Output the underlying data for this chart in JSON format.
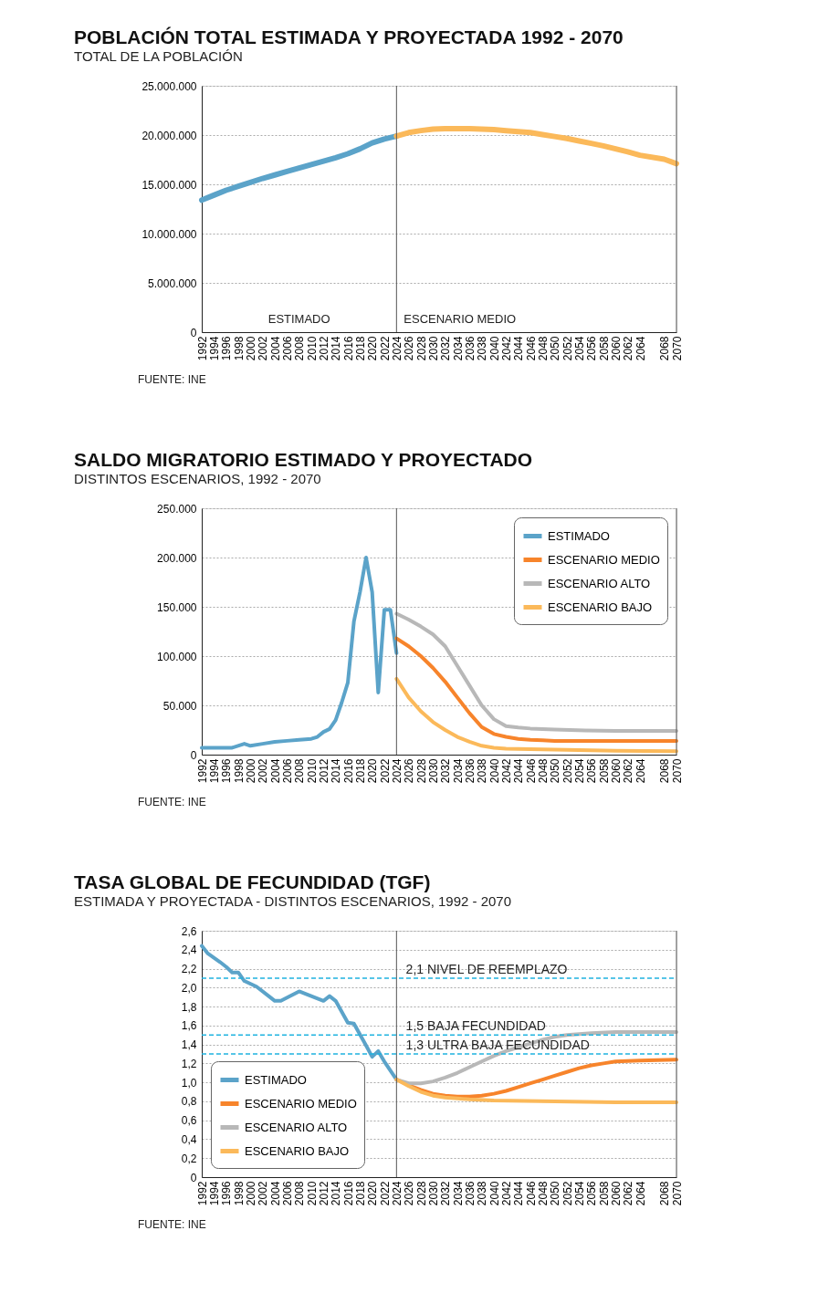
{
  "chart_data": [
    {
      "type": "line",
      "title": "POBLACIÓN TOTAL ESTIMADA Y PROYECTADA 1992 - 2070",
      "subtitle": "TOTAL DE LA POBLACIÓN",
      "xlim": [
        1992,
        2070
      ],
      "xticks": [
        1992,
        1994,
        1996,
        1998,
        2000,
        2002,
        2004,
        2006,
        2008,
        2010,
        2012,
        2014,
        2016,
        2018,
        2020,
        2022,
        2024,
        2026,
        2028,
        2030,
        2032,
        2034,
        2036,
        2038,
        2040,
        2042,
        2044,
        2046,
        2048,
        2050,
        2052,
        2054,
        2056,
        2058,
        2060,
        2062,
        2064,
        2068,
        2070
      ],
      "ylim": [
        0,
        25000000
      ],
      "yticks": [
        {
          "value": 0,
          "label": "0"
        },
        {
          "value": 5000000,
          "label": "5.000.000"
        },
        {
          "value": 10000000,
          "label": "10.000.000"
        },
        {
          "value": 15000000,
          "label": "15.000.000"
        },
        {
          "value": 20000000,
          "label": "20.000.000"
        },
        {
          "value": 25000000,
          "label": "25.000.000"
        }
      ],
      "grid": "y",
      "legend": false,
      "marker": "none",
      "line_style": "solid",
      "series": [
        {
          "color": "#5ba3c9",
          "x": [
            1992,
            1994,
            1996,
            1998,
            2000,
            2002,
            2004,
            2006,
            2008,
            2010,
            2012,
            2014,
            2016,
            2018,
            2020,
            2022,
            2024
          ],
          "values": [
            13400000,
            13900000,
            14400000,
            14800000,
            15200000,
            15600000,
            15950000,
            16300000,
            16650000,
            17000000,
            17350000,
            17700000,
            18100000,
            18600000,
            19200000,
            19600000,
            19900000
          ]
        },
        {
          "color": "#fbb95a",
          "x": [
            2024,
            2026,
            2028,
            2030,
            2032,
            2034,
            2036,
            2038,
            2040,
            2042,
            2044,
            2046,
            2048,
            2050,
            2052,
            2054,
            2056,
            2058,
            2060,
            2062,
            2064,
            2068,
            2070
          ],
          "values": [
            19900000,
            20250000,
            20450000,
            20600000,
            20650000,
            20650000,
            20650000,
            20600000,
            20550000,
            20450000,
            20350000,
            20250000,
            20050000,
            19850000,
            19650000,
            19400000,
            19150000,
            18900000,
            18600000,
            18300000,
            17950000,
            17550000,
            17100000
          ]
        }
      ],
      "ref_lines": [
        {
          "axis": "x",
          "value": 2024,
          "color": "#555555"
        },
        {
          "axis": "x",
          "value": 2070,
          "color": "#555555"
        }
      ],
      "annotations": [
        "ESTIMADO",
        "ESCENARIO MEDIO",
        "FUENTE: INE"
      ]
    },
    {
      "type": "line",
      "title": "SALDO MIGRATORIO ESTIMADO Y PROYECTADO",
      "subtitle": "DISTINTOS ESCENARIOS, 1992 - 2070",
      "xlim": [
        1992,
        2070
      ],
      "xticks": [
        1992,
        1994,
        1996,
        1998,
        2000,
        2002,
        2004,
        2006,
        2008,
        2010,
        2012,
        2014,
        2016,
        2018,
        2020,
        2022,
        2024,
        2026,
        2028,
        2030,
        2032,
        2034,
        2036,
        2038,
        2040,
        2042,
        2044,
        2046,
        2048,
        2050,
        2052,
        2054,
        2056,
        2058,
        2060,
        2062,
        2064,
        2068,
        2070
      ],
      "ylim": [
        0,
        250000
      ],
      "yticks": [
        {
          "value": 0,
          "label": "0"
        },
        {
          "value": 50000,
          "label": "50.000"
        },
        {
          "value": 100000,
          "label": "100.000"
        },
        {
          "value": 150000,
          "label": "150.000"
        },
        {
          "value": 200000,
          "label": "200.000"
        },
        {
          "value": 250000,
          "label": "250.000"
        }
      ],
      "grid": "y",
      "legend": "top right",
      "marker": "none",
      "line_style": "solid",
      "series": [
        {
          "name": "ESTIMADO",
          "color": "#5ba3c9",
          "x": [
            1992,
            1997,
            1999,
            2000,
            2002,
            2004,
            2006,
            2008,
            2010,
            2011,
            2012,
            2013,
            2014,
            2015,
            2016,
            2017,
            2018,
            2019,
            2020,
            2021,
            2022,
            2023,
            2024
          ],
          "values": [
            7000,
            7000,
            11000,
            9000,
            11000,
            13000,
            14000,
            15000,
            16000,
            18000,
            23000,
            26000,
            35000,
            53000,
            73000,
            135000,
            165000,
            200000,
            165000,
            63000,
            147000,
            147000,
            103000
          ]
        },
        {
          "name": "ESCENARIO MEDIO",
          "color": "#f7842b",
          "x": [
            2024,
            2026,
            2028,
            2030,
            2032,
            2034,
            2036,
            2038,
            2040,
            2042,
            2044,
            2046,
            2048,
            2050,
            2060,
            2070
          ],
          "values": [
            118000,
            110000,
            100000,
            88000,
            74000,
            58000,
            42000,
            28000,
            21000,
            18000,
            16000,
            15000,
            14500,
            14000,
            14000,
            14000
          ]
        },
        {
          "name": "ESCENARIO ALTO",
          "color": "#b8b8b8",
          "x": [
            2024,
            2026,
            2028,
            2030,
            2032,
            2034,
            2036,
            2038,
            2040,
            2042,
            2044,
            2046,
            2048,
            2050,
            2055,
            2060,
            2070
          ],
          "values": [
            143000,
            137000,
            130000,
            122000,
            110000,
            90000,
            70000,
            50000,
            36000,
            29000,
            27500,
            26500,
            26000,
            25500,
            24500,
            24000,
            24000
          ]
        },
        {
          "name": "ESCENARIO BAJO",
          "color": "#fbb95a",
          "x": [
            2024,
            2026,
            2028,
            2030,
            2032,
            2034,
            2036,
            2038,
            2040,
            2042,
            2046,
            2050,
            2060,
            2070
          ],
          "values": [
            77000,
            58000,
            44000,
            33000,
            25000,
            18000,
            13000,
            9000,
            7000,
            6000,
            5500,
            5000,
            4000,
            3500
          ]
        }
      ],
      "ref_lines": [
        {
          "axis": "x",
          "value": 2024,
          "color": "#555555"
        },
        {
          "axis": "x",
          "value": 2070,
          "color": "#555555"
        }
      ],
      "annotations": [
        "FUENTE: INE"
      ]
    },
    {
      "type": "line",
      "title": "TASA GLOBAL DE FECUNDIDAD (TGF)",
      "subtitle": "ESTIMADA Y PROYECTADA - DISTINTOS ESCENARIOS, 1992 - 2070",
      "xlim": [
        1992,
        2070
      ],
      "xticks": [
        1992,
        1994,
        1996,
        1998,
        2000,
        2002,
        2004,
        2006,
        2008,
        2010,
        2012,
        2014,
        2016,
        2018,
        2020,
        2022,
        2024,
        2026,
        2028,
        2030,
        2032,
        2034,
        2036,
        2038,
        2040,
        2042,
        2044,
        2046,
        2048,
        2050,
        2052,
        2054,
        2056,
        2058,
        2060,
        2062,
        2064,
        2068,
        2070
      ],
      "ylim": [
        0,
        2.6
      ],
      "yticks": [
        0,
        {
          "value": 0.2,
          "label": "0,2"
        },
        {
          "value": 0.4,
          "label": "0,4"
        },
        {
          "value": 0.6,
          "label": "0,6"
        },
        {
          "value": 0.8,
          "label": "0,8"
        },
        {
          "value": 1.0,
          "label": "1,0"
        },
        {
          "value": 1.2,
          "label": "1,2"
        },
        {
          "value": 1.4,
          "label": "1,4"
        },
        {
          "value": 1.6,
          "label": "1,6"
        },
        {
          "value": 1.8,
          "label": "1,8"
        },
        {
          "value": 2.0,
          "label": "2,0"
        },
        {
          "value": 2.2,
          "label": "2,2"
        },
        {
          "value": 2.4,
          "label": "2,4"
        },
        {
          "value": 2.6,
          "label": "2,6"
        }
      ],
      "grid": "y",
      "legend": "bottom left",
      "marker": "none",
      "line_style": "solid",
      "series": [
        {
          "name": "ESTIMADO",
          "color": "#5ba3c9",
          "x": [
            1992,
            1993,
            1995,
            1996,
            1997,
            1998,
            1999,
            2001,
            2003,
            2004,
            2005,
            2008,
            2012,
            2013,
            2014,
            2016,
            2017,
            2019,
            2020,
            2021,
            2022,
            2024
          ],
          "values": [
            2.44,
            2.36,
            2.27,
            2.22,
            2.16,
            2.16,
            2.07,
            2.01,
            1.91,
            1.86,
            1.86,
            1.96,
            1.86,
            1.91,
            1.86,
            1.63,
            1.62,
            1.39,
            1.27,
            1.33,
            1.22,
            1.03
          ]
        },
        {
          "name": "ESCENARIO MEDIO",
          "color": "#f7842b",
          "x": [
            2024,
            2026,
            2028,
            2030,
            2032,
            2034,
            2036,
            2038,
            2040,
            2042,
            2044,
            2046,
            2048,
            2050,
            2052,
            2054,
            2056,
            2058,
            2060,
            2064,
            2070
          ],
          "values": [
            1.03,
            0.97,
            0.92,
            0.88,
            0.86,
            0.85,
            0.85,
            0.86,
            0.88,
            0.91,
            0.95,
            0.99,
            1.03,
            1.07,
            1.11,
            1.15,
            1.18,
            1.2,
            1.22,
            1.23,
            1.24
          ]
        },
        {
          "name": "ESCENARIO ALTO",
          "color": "#b8b8b8",
          "x": [
            2024,
            2026,
            2028,
            2030,
            2032,
            2034,
            2036,
            2038,
            2040,
            2042,
            2044,
            2046,
            2048,
            2050,
            2052,
            2054,
            2056,
            2060,
            2070
          ],
          "values": [
            1.03,
            0.99,
            0.99,
            1.01,
            1.05,
            1.1,
            1.16,
            1.22,
            1.28,
            1.33,
            1.37,
            1.41,
            1.45,
            1.48,
            1.5,
            1.51,
            1.52,
            1.53,
            1.53
          ]
        },
        {
          "name": "ESCENARIO BAJO",
          "color": "#fbb95a",
          "x": [
            2024,
            2026,
            2028,
            2030,
            2032,
            2034,
            2036,
            2040,
            2050,
            2060,
            2070
          ],
          "values": [
            1.03,
            0.96,
            0.9,
            0.86,
            0.84,
            0.83,
            0.82,
            0.81,
            0.8,
            0.79,
            0.79
          ]
        }
      ],
      "ref_lines": [
        {
          "axis": "x",
          "value": 2024,
          "color": "#555555"
        },
        {
          "axis": "x",
          "value": 2070,
          "color": "#555555"
        },
        {
          "axis": "y",
          "value": 2.1,
          "label": "2,1 NIVEL DE REEMPLAZO",
          "color": "#1fb3e0",
          "line_style": "dashed"
        },
        {
          "axis": "y",
          "value": 1.5,
          "label": "1,5 BAJA FECUNDIDAD",
          "color": "#1fb3e0",
          "line_style": "dashed"
        },
        {
          "axis": "y",
          "value": 1.3,
          "label": "1,3 ULTRA BAJA FECUNDIDAD",
          "color": "#1fb3e0",
          "line_style": "dashed"
        }
      ],
      "annotations": [
        "FUENTE: INE"
      ]
    }
  ]
}
